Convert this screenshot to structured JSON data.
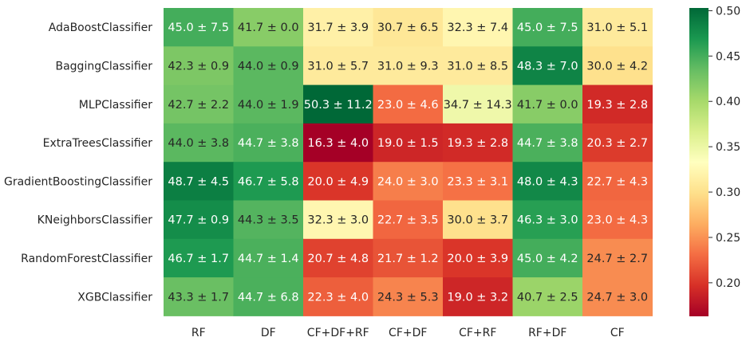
{
  "chart_data": {
    "type": "heatmap",
    "rows": [
      "AdaBoostClassifier",
      "BaggingClassifier",
      "MLPClassifier",
      "ExtraTreesClassifier",
      "GradientBoostingClassifier",
      "KNeighborsClassifier",
      "RandomForestClassifier",
      "XGBClassifier"
    ],
    "columns": [
      "RF",
      "DF",
      "CF+DF+RF",
      "CF+DF",
      "CF+RF",
      "RF+DF",
      "CF"
    ],
    "values": [
      [
        0.45,
        0.417,
        0.317,
        0.307,
        0.323,
        0.45,
        0.31
      ],
      [
        0.423,
        0.44,
        0.31,
        0.31,
        0.31,
        0.483,
        0.3
      ],
      [
        0.427,
        0.44,
        0.503,
        0.23,
        0.347,
        0.417,
        0.193
      ],
      [
        0.44,
        0.447,
        0.163,
        0.19,
        0.193,
        0.447,
        0.203
      ],
      [
        0.487,
        0.467,
        0.2,
        0.24,
        0.233,
        0.48,
        0.227
      ],
      [
        0.477,
        0.443,
        0.323,
        0.227,
        0.3,
        0.463,
        0.23
      ],
      [
        0.467,
        0.447,
        0.207,
        0.217,
        0.2,
        0.45,
        0.247
      ],
      [
        0.433,
        0.447,
        0.223,
        0.243,
        0.19,
        0.407,
        0.247
      ]
    ],
    "annotations": [
      [
        "45.0 ± 7.5",
        "41.7 ± 0.0",
        "31.7 ± 3.9",
        "30.7 ± 6.5",
        "32.3 ± 7.4",
        "45.0 ± 7.5",
        "31.0 ± 5.1"
      ],
      [
        "42.3 ± 0.9",
        "44.0 ± 0.9",
        "31.0 ± 5.7",
        "31.0 ± 9.3",
        "31.0 ± 8.5",
        "48.3 ± 7.0",
        "30.0 ± 4.2"
      ],
      [
        "42.7 ± 2.2",
        "44.0 ± 1.9",
        "50.3 ± 11.2",
        "23.0 ± 4.6",
        "34.7 ± 14.3",
        "41.7 ± 0.0",
        "19.3 ± 2.8"
      ],
      [
        "44.0 ± 3.8",
        "44.7 ± 3.8",
        "16.3 ± 4.0",
        "19.0 ± 1.5",
        "19.3 ± 2.8",
        "44.7 ± 3.8",
        "20.3 ± 2.7"
      ],
      [
        "48.7 ± 4.5",
        "46.7 ± 5.8",
        "20.0 ± 4.9",
        "24.0 ± 3.0",
        "23.3 ± 3.1",
        "48.0 ± 4.3",
        "22.7 ± 4.3"
      ],
      [
        "47.7 ± 0.9",
        "44.3 ± 3.5",
        "32.3 ± 3.0",
        "22.7 ± 3.5",
        "30.0 ± 3.7",
        "46.3 ± 3.0",
        "23.0 ± 4.3"
      ],
      [
        "46.7 ± 1.7",
        "44.7 ± 1.4",
        "20.7 ± 4.8",
        "21.7 ± 1.2",
        "20.0 ± 3.9",
        "45.0 ± 4.2",
        "24.7 ± 2.7"
      ],
      [
        "43.3 ± 1.7",
        "44.7 ± 6.8",
        "22.3 ± 4.0",
        "24.3 ± 5.3",
        "19.0 ± 3.2",
        "40.7 ± 2.5",
        "24.7 ± 3.0"
      ]
    ],
    "colormap": "RdYlGn",
    "vmin": 0.163,
    "vmax": 0.503,
    "colorbar_ticks": [
      "0.20",
      "0.25",
      "0.30",
      "0.35",
      "0.40",
      "0.45",
      "0.50"
    ],
    "colorbar_tick_values": [
      0.2,
      0.25,
      0.3,
      0.35,
      0.4,
      0.45,
      0.5
    ]
  }
}
